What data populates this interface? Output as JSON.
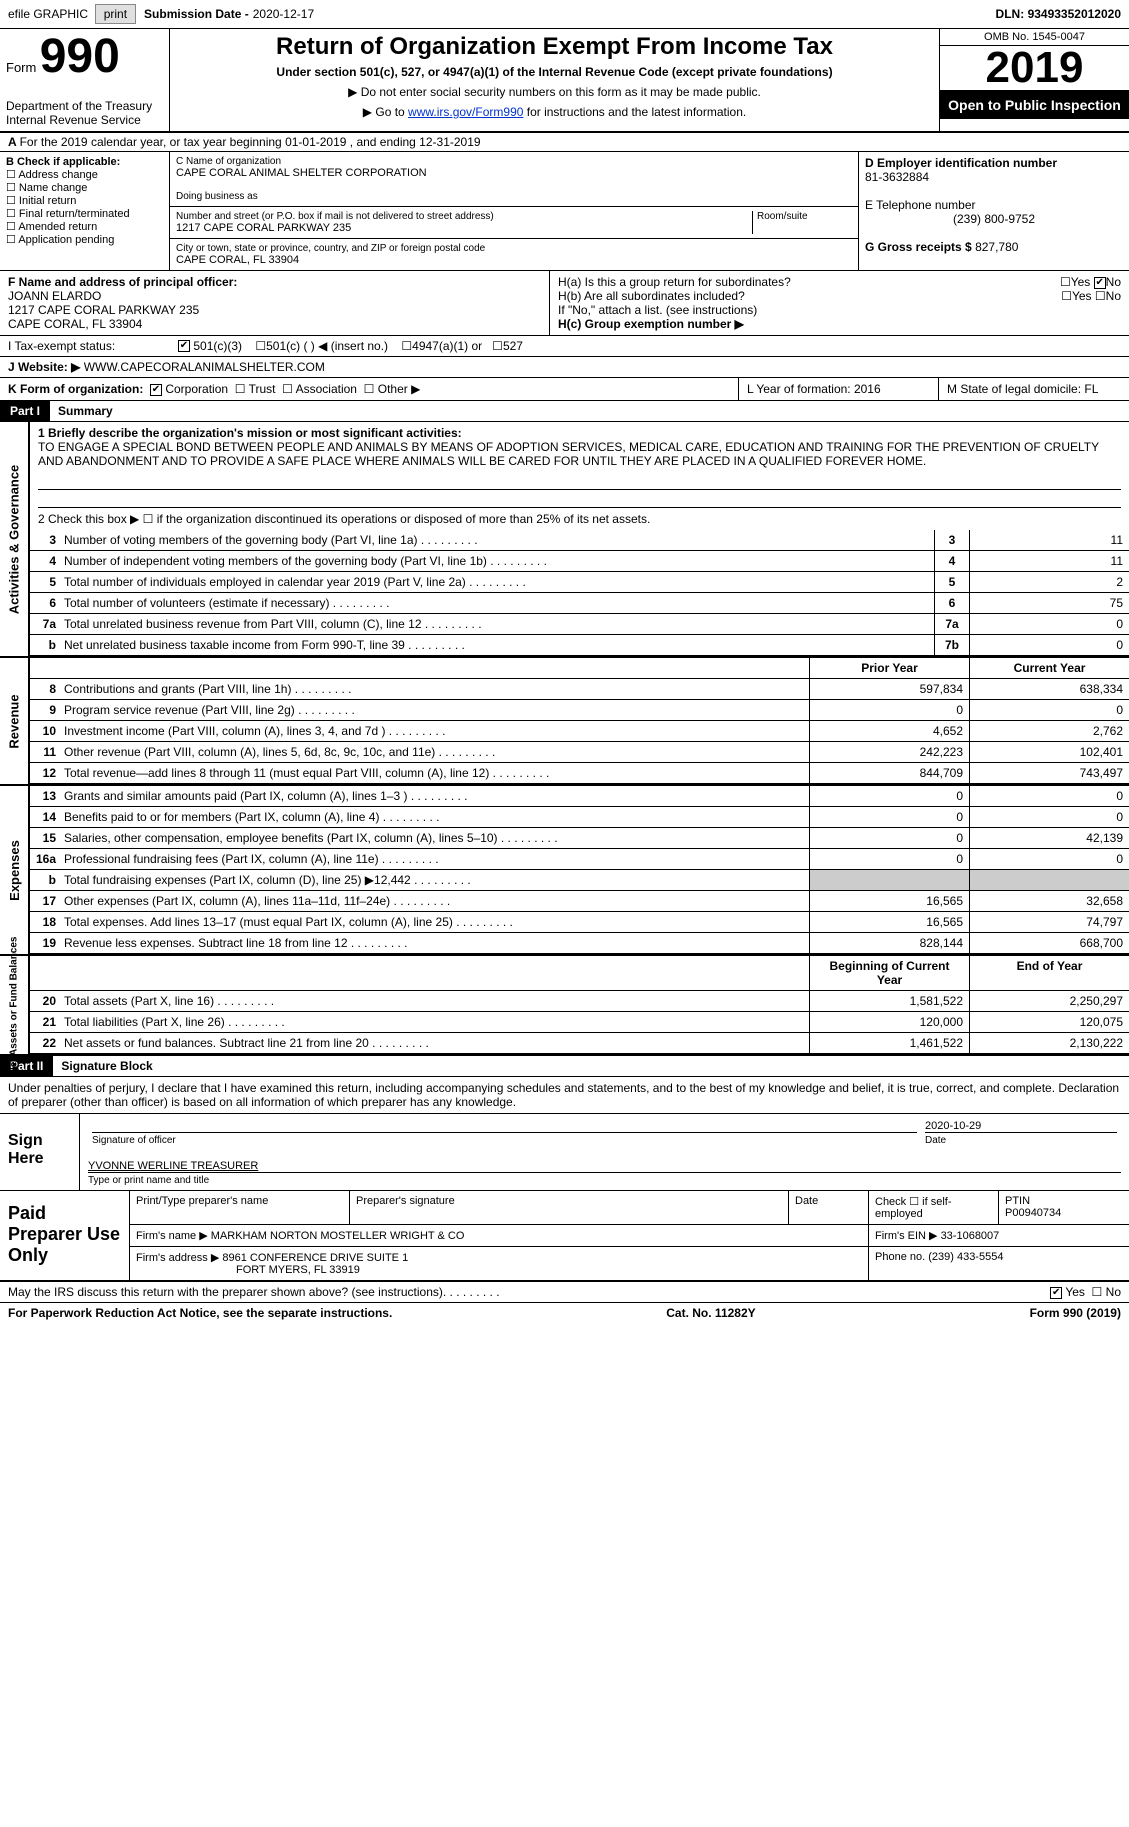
{
  "topbar": {
    "efile": "efile GRAPHIC",
    "print": "print",
    "sub_label": "Submission Date -",
    "sub_date": "2020-12-17",
    "dln_label": "DLN:",
    "dln": "93493352012020"
  },
  "header": {
    "form_word": "Form",
    "form_num": "990",
    "dept": "Department of the Treasury\nInternal Revenue Service",
    "title": "Return of Organization Exempt From Income Tax",
    "subtitle": "Under section 501(c), 527, or 4947(a)(1) of the Internal Revenue Code (except private foundations)",
    "instr1": "▶ Do not enter social security numbers on this form as it may be made public.",
    "instr2_pre": "▶ Go to ",
    "instr2_link": "www.irs.gov/Form990",
    "instr2_post": " for instructions and the latest information.",
    "omb": "OMB No. 1545-0047",
    "year": "2019",
    "inspect": "Open to Public Inspection"
  },
  "lineA": "For the 2019 calendar year, or tax year beginning 01-01-2019   , and ending 12-31-2019",
  "boxB": {
    "label": "B Check if applicable:",
    "opts": [
      "Address change",
      "Name change",
      "Initial return",
      "Final return/terminated",
      "Amended return",
      "Application pending"
    ]
  },
  "boxC": {
    "name_label": "C Name of organization",
    "name": "CAPE CORAL ANIMAL SHELTER CORPORATION",
    "dba_label": "Doing business as",
    "dba": "",
    "addr_label": "Number and street (or P.O. box if mail is not delivered to street address)",
    "room_label": "Room/suite",
    "addr": "1217 CAPE CORAL PARKWAY 235",
    "city_label": "City or town, state or province, country, and ZIP or foreign postal code",
    "city": "CAPE CORAL, FL  33904"
  },
  "boxD": {
    "label": "D Employer identification number",
    "ein": "81-3632884",
    "phone_label": "E Telephone number",
    "phone": "(239) 800-9752",
    "gross_label": "G Gross receipts $",
    "gross": "827,780"
  },
  "boxF": {
    "label": "F  Name and address of principal officer:",
    "name": "JOANN ELARDO",
    "addr1": "1217 CAPE CORAL PARKWAY 235",
    "addr2": "CAPE CORAL, FL  33904"
  },
  "boxH": {
    "ha": "H(a)  Is this a group return for subordinates?",
    "hb": "H(b)  Are all subordinates included?",
    "hb_note": "If \"No,\" attach a list. (see instructions)",
    "hc": "H(c)  Group exemption number ▶",
    "yes": "Yes",
    "no": "No"
  },
  "boxI": {
    "label": "I    Tax-exempt status:",
    "o1": "501(c)(3)",
    "o2": "501(c) (  ) ◀ (insert no.)",
    "o3": "4947(a)(1) or",
    "o4": "527"
  },
  "boxJ": {
    "label": "J   Website: ▶",
    "val": "WWW.CAPECORALANIMALSHELTER.COM"
  },
  "boxK": {
    "label": "K Form of organization:",
    "o1": "Corporation",
    "o2": "Trust",
    "o3": "Association",
    "o4": "Other ▶"
  },
  "boxLM": {
    "l": "L Year of formation: 2016",
    "m": "M State of legal domicile: FL"
  },
  "part1": {
    "tag": "Part I",
    "title": "Summary",
    "q1_label": "1  Briefly describe the organization's mission or most significant activities:",
    "mission": "TO ENGAGE A SPECIAL BOND BETWEEN PEOPLE AND ANIMALS BY MEANS OF ADOPTION SERVICES, MEDICAL CARE, EDUCATION AND TRAINING FOR THE PREVENTION OF CRUELTY AND ABANDONMENT AND TO PROVIDE A SAFE PLACE WHERE ANIMALS WILL BE CARED FOR UNTIL THEY ARE PLACED IN A QUALIFIED FOREVER HOME.",
    "q2": "2    Check this box ▶ ☐  if the organization discontinued its operations or disposed of more than 25% of its net assets.",
    "rows_gov": [
      {
        "n": "3",
        "d": "Number of voting members of the governing body (Part VI, line 1a)",
        "b": "3",
        "v": "11"
      },
      {
        "n": "4",
        "d": "Number of independent voting members of the governing body (Part VI, line 1b)",
        "b": "4",
        "v": "11"
      },
      {
        "n": "5",
        "d": "Total number of individuals employed in calendar year 2019 (Part V, line 2a)",
        "b": "5",
        "v": "2"
      },
      {
        "n": "6",
        "d": "Total number of volunteers (estimate if necessary)",
        "b": "6",
        "v": "75"
      },
      {
        "n": "7a",
        "d": "Total unrelated business revenue from Part VIII, column (C), line 12",
        "b": "7a",
        "v": "0"
      },
      {
        "n": "b",
        "d": "Net unrelated business taxable income from Form 990-T, line 39",
        "b": "7b",
        "v": "0"
      }
    ],
    "hdr_prior": "Prior Year",
    "hdr_curr": "Current Year",
    "rows_rev": [
      {
        "n": "8",
        "d": "Contributions and grants (Part VIII, line 1h)",
        "p": "597,834",
        "c": "638,334"
      },
      {
        "n": "9",
        "d": "Program service revenue (Part VIII, line 2g)",
        "p": "0",
        "c": "0"
      },
      {
        "n": "10",
        "d": "Investment income (Part VIII, column (A), lines 3, 4, and 7d )",
        "p": "4,652",
        "c": "2,762"
      },
      {
        "n": "11",
        "d": "Other revenue (Part VIII, column (A), lines 5, 6d, 8c, 9c, 10c, and 11e)",
        "p": "242,223",
        "c": "102,401"
      },
      {
        "n": "12",
        "d": "Total revenue—add lines 8 through 11 (must equal Part VIII, column (A), line 12)",
        "p": "844,709",
        "c": "743,497"
      }
    ],
    "rows_exp": [
      {
        "n": "13",
        "d": "Grants and similar amounts paid (Part IX, column (A), lines 1–3 )",
        "p": "0",
        "c": "0"
      },
      {
        "n": "14",
        "d": "Benefits paid to or for members (Part IX, column (A), line 4)",
        "p": "0",
        "c": "0"
      },
      {
        "n": "15",
        "d": "Salaries, other compensation, employee benefits (Part IX, column (A), lines 5–10)",
        "p": "0",
        "c": "42,139"
      },
      {
        "n": "16a",
        "d": "Professional fundraising fees (Part IX, column (A), line 11e)",
        "p": "0",
        "c": "0"
      },
      {
        "n": "b",
        "d": "Total fundraising expenses (Part IX, column (D), line 25) ▶12,442",
        "p": "",
        "c": "",
        "shaded": true
      },
      {
        "n": "17",
        "d": "Other expenses (Part IX, column (A), lines 11a–11d, 11f–24e)",
        "p": "16,565",
        "c": "32,658"
      },
      {
        "n": "18",
        "d": "Total expenses. Add lines 13–17 (must equal Part IX, column (A), line 25)",
        "p": "16,565",
        "c": "74,797"
      },
      {
        "n": "19",
        "d": "Revenue less expenses. Subtract line 18 from line 12",
        "p": "828,144",
        "c": "668,700"
      }
    ],
    "hdr_beg": "Beginning of Current Year",
    "hdr_end": "End of Year",
    "rows_bal": [
      {
        "n": "20",
        "d": "Total assets (Part X, line 16)",
        "p": "1,581,522",
        "c": "2,250,297"
      },
      {
        "n": "21",
        "d": "Total liabilities (Part X, line 26)",
        "p": "120,000",
        "c": "120,075"
      },
      {
        "n": "22",
        "d": "Net assets or fund balances. Subtract line 21 from line 20",
        "p": "1,461,522",
        "c": "2,130,222"
      }
    ],
    "side_gov": "Activities & Governance",
    "side_rev": "Revenue",
    "side_exp": "Expenses",
    "side_bal": "Net Assets or Fund Balances"
  },
  "part2": {
    "tag": "Part II",
    "title": "Signature Block",
    "decl": "Under penalties of perjury, I declare that I have examined this return, including accompanying schedules and statements, and to the best of my knowledge and belief, it is true, correct, and complete. Declaration of preparer (other than officer) is based on all information of which preparer has any knowledge.",
    "sign_here": "Sign Here",
    "sig_officer": "Signature of officer",
    "sig_date_label": "Date",
    "sig_date": "2020-10-29",
    "officer_name": "YVONNE WERLINE  TREASURER",
    "officer_caption": "Type or print name and title",
    "paid_prep": "Paid Preparer Use Only",
    "prep_name_label": "Print/Type preparer's name",
    "prep_sig_label": "Preparer's signature",
    "date_label": "Date",
    "self_emp": "Check ☐ if self-employed",
    "ptin_label": "PTIN",
    "ptin": "P00940734",
    "firm_name_label": "Firm's name    ▶",
    "firm_name": "MARKHAM NORTON MOSTELLER WRIGHT & CO",
    "firm_ein_label": "Firm's EIN ▶",
    "firm_ein": "33-1068007",
    "firm_addr_label": "Firm's address ▶",
    "firm_addr1": "8961 CONFERENCE DRIVE SUITE 1",
    "firm_addr2": "FORT MYERS, FL  33919",
    "phone_label": "Phone no.",
    "phone": "(239) 433-5554"
  },
  "footer": {
    "discuss": "May the IRS discuss this return with the preparer shown above? (see instructions)",
    "yes": "Yes",
    "no": "No",
    "paperwork": "For Paperwork Reduction Act Notice, see the separate instructions.",
    "cat": "Cat. No. 11282Y",
    "form": "Form 990 (2019)"
  }
}
